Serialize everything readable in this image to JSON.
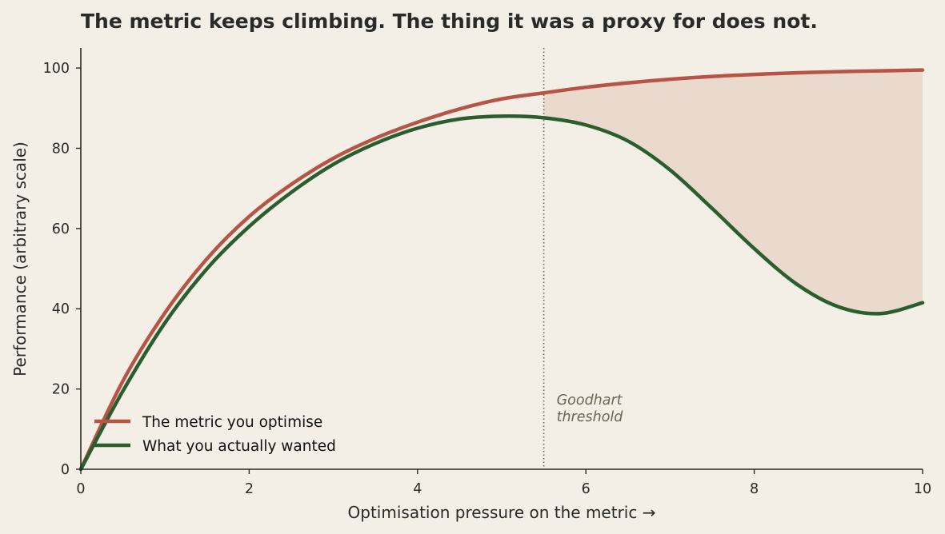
{
  "chart_data": {
    "type": "line",
    "title": "The metric keeps climbing. The thing it was a proxy for does not.",
    "xlabel": "Optimisation pressure on the metric  →",
    "ylabel": "Performance (arbitrary scale)",
    "xlim": [
      0,
      10
    ],
    "ylim": [
      0,
      105
    ],
    "xticks": [
      0,
      2,
      4,
      6,
      8,
      10
    ],
    "yticks": [
      0,
      20,
      40,
      60,
      80,
      100
    ],
    "x": [
      0,
      0.5,
      1,
      1.5,
      2,
      2.5,
      3,
      3.5,
      4,
      4.5,
      5,
      5.5,
      6,
      6.5,
      7,
      7.5,
      8,
      8.5,
      9,
      9.5,
      10
    ],
    "series": [
      {
        "name": "The metric you optimise",
        "color": "#b85445",
        "values": [
          0,
          22,
          39,
          52.5,
          63,
          71,
          77.5,
          82.5,
          86.5,
          89.8,
          92.3,
          93.8,
          95.2,
          96.3,
          97.2,
          97.9,
          98.4,
          98.8,
          99.1,
          99.3,
          99.5
        ]
      },
      {
        "name": "What you actually wanted",
        "color": "#2b5d2f",
        "values": [
          0,
          19.5,
          36.5,
          50,
          60.5,
          69,
          76,
          81.2,
          85,
          87.3,
          88,
          87.6,
          85.8,
          81.8,
          74.6,
          65,
          55,
          46.2,
          40.5,
          38.8,
          41.5
        ]
      }
    ],
    "threshold": {
      "x": 5.5,
      "label_lines": [
        "Goodhart",
        "threshold"
      ]
    },
    "gap_fill_color": "#ead9cd",
    "legend_position": "lower-left",
    "grid": false
  }
}
